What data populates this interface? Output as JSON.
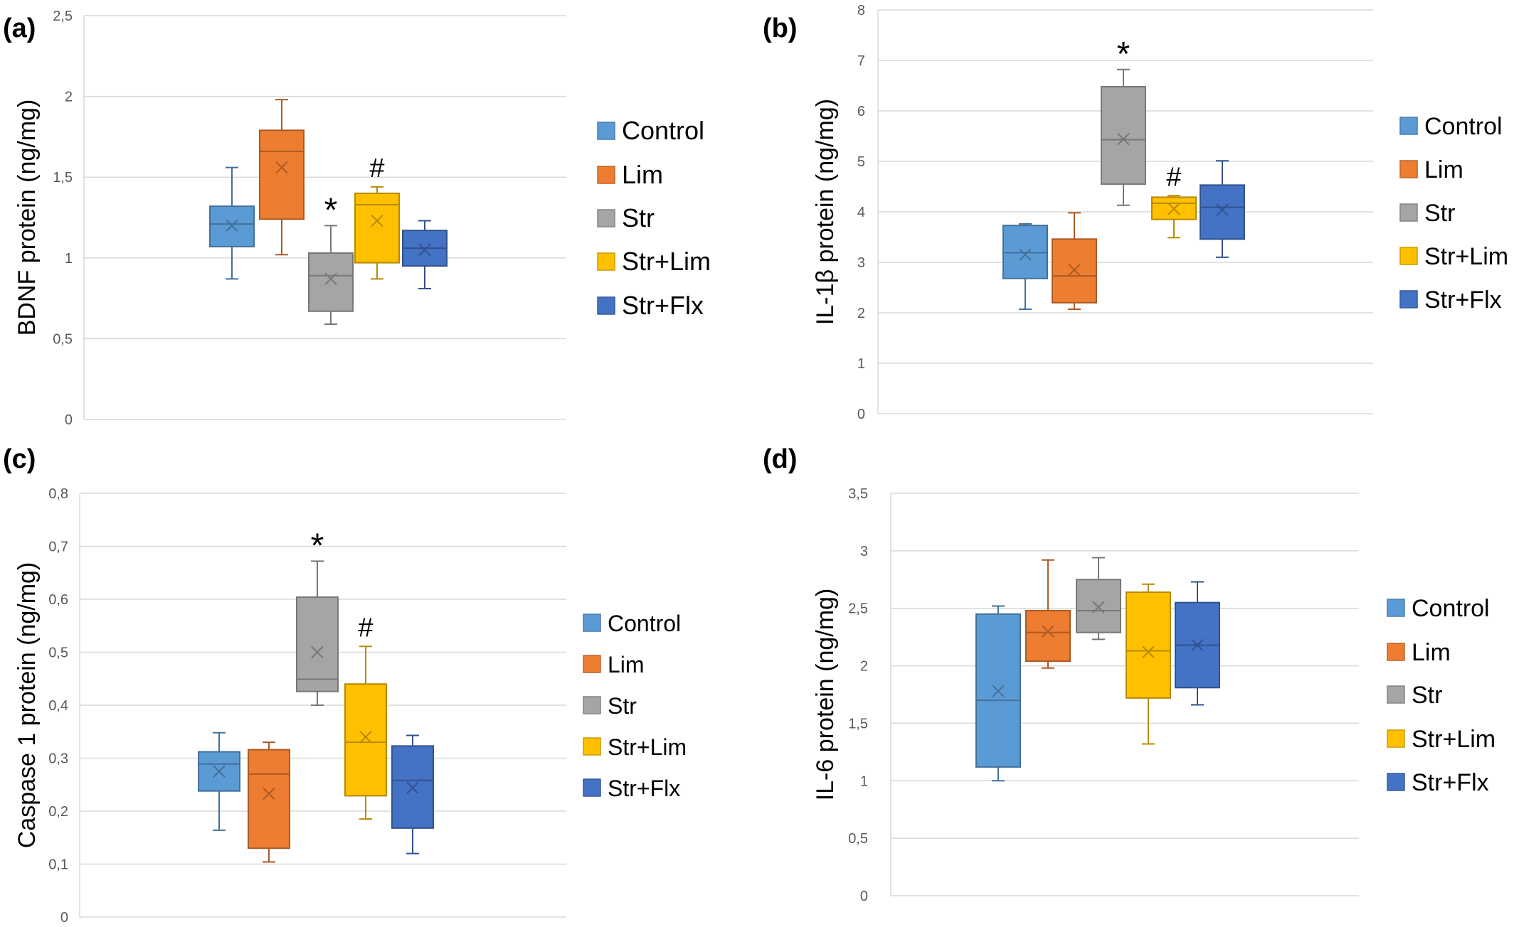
{
  "colors": {
    "Control": "#5B9BD5",
    "Lim": "#ED7D31",
    "Str": "#A5A5A5",
    "Str+Lim": "#FFC000",
    "Str+Flx": "#4472C4",
    "grid": "#D9D9D9",
    "whisker_dark": "#7F7F7F"
  },
  "chart_data": [
    {
      "type": "box",
      "panel_label": "(a)",
      "ylabel": "BDNF protein (ng/mg)",
      "ylim": [
        0,
        2.5
      ],
      "yticks": [
        "0",
        "0,5",
        "1",
        "1,5",
        "2",
        "2,5"
      ],
      "grid": true,
      "legend_position": "right",
      "series": [
        {
          "name": "Control",
          "min": 0.87,
          "q1": 1.07,
          "median": 1.21,
          "q3": 1.32,
          "max": 1.56,
          "mean": 1.2
        },
        {
          "name": "Lim",
          "min": 1.02,
          "q1": 1.24,
          "median": 1.66,
          "q3": 1.79,
          "max": 1.98,
          "mean": 1.56
        },
        {
          "name": "Str",
          "min": 0.59,
          "q1": 0.67,
          "median": 0.89,
          "q3": 1.03,
          "max": 1.2,
          "mean": 0.87,
          "marker": "*"
        },
        {
          "name": "Str+Lim",
          "min": 0.87,
          "q1": 0.97,
          "median": 1.33,
          "q3": 1.4,
          "max": 1.44,
          "mean": 1.23,
          "marker": "#"
        },
        {
          "name": "Str+Flx",
          "min": 0.81,
          "q1": 0.95,
          "median": 1.06,
          "q3": 1.17,
          "max": 1.23,
          "mean": 1.05
        }
      ]
    },
    {
      "type": "box",
      "panel_label": "(b)",
      "ylabel": "IL-1β protein (ng/mg)",
      "ylim": [
        0,
        8
      ],
      "yticks": [
        "0",
        "1",
        "2",
        "3",
        "4",
        "5",
        "6",
        "7",
        "8"
      ],
      "grid": true,
      "legend_position": "right",
      "series": [
        {
          "name": "Control",
          "min": 2.07,
          "q1": 2.68,
          "median": 3.19,
          "q3": 3.73,
          "max": 3.76,
          "mean": 3.15
        },
        {
          "name": "Lim",
          "min": 2.07,
          "q1": 2.2,
          "median": 2.73,
          "q3": 3.46,
          "max": 3.98,
          "mean": 2.85
        },
        {
          "name": "Str",
          "min": 4.13,
          "q1": 4.55,
          "median": 5.43,
          "q3": 6.48,
          "max": 6.82,
          "mean": 5.44,
          "marker": "*"
        },
        {
          "name": "Str+Lim",
          "min": 3.49,
          "q1": 3.85,
          "median": 4.17,
          "q3": 4.29,
          "max": 4.32,
          "mean": 4.06,
          "marker": "#"
        },
        {
          "name": "Str+Flx",
          "min": 3.1,
          "q1": 3.46,
          "median": 4.09,
          "q3": 4.53,
          "max": 5.01,
          "mean": 4.04
        }
      ]
    },
    {
      "type": "box",
      "panel_label": "(c)",
      "ylabel": "Caspase 1 protein (ng/mg)",
      "ylim": [
        0,
        0.8
      ],
      "yticks": [
        "0",
        "0,1",
        "0,2",
        "0,3",
        "0,4",
        "0,5",
        "0,6",
        "0,7",
        "0,8"
      ],
      "grid": true,
      "legend_position": "right",
      "series": [
        {
          "name": "Control",
          "min": 0.164,
          "q1": 0.238,
          "median": 0.289,
          "q3": 0.312,
          "max": 0.348,
          "mean": 0.275
        },
        {
          "name": "Lim",
          "min": 0.104,
          "q1": 0.13,
          "median": 0.27,
          "q3": 0.316,
          "max": 0.33,
          "mean": 0.233
        },
        {
          "name": "Str",
          "min": 0.4,
          "q1": 0.426,
          "median": 0.449,
          "q3": 0.604,
          "max": 0.672,
          "mean": 0.5,
          "marker": "*"
        },
        {
          "name": "Str+Lim",
          "min": 0.185,
          "q1": 0.229,
          "median": 0.33,
          "q3": 0.44,
          "max": 0.511,
          "mean": 0.34,
          "marker": "#"
        },
        {
          "name": "Str+Flx",
          "min": 0.12,
          "q1": 0.168,
          "median": 0.258,
          "q3": 0.323,
          "max": 0.343,
          "mean": 0.244
        }
      ]
    },
    {
      "type": "box",
      "panel_label": "(d)",
      "ylabel": "IL-6 protein (ng/mg)",
      "ylim": [
        0,
        3.5
      ],
      "yticks": [
        "0",
        "0,5",
        "1",
        "1,5",
        "2",
        "2,5",
        "3",
        "3,5"
      ],
      "grid": true,
      "legend_position": "right",
      "series": [
        {
          "name": "Control",
          "min": 1.0,
          "q1": 1.12,
          "median": 1.7,
          "q3": 2.45,
          "max": 2.52,
          "mean": 1.78
        },
        {
          "name": "Lim",
          "min": 1.98,
          "q1": 2.04,
          "median": 2.29,
          "q3": 2.48,
          "max": 2.92,
          "mean": 2.3
        },
        {
          "name": "Str",
          "min": 2.23,
          "q1": 2.29,
          "median": 2.48,
          "q3": 2.75,
          "max": 2.94,
          "mean": 2.51
        },
        {
          "name": "Str+Lim",
          "min": 1.32,
          "q1": 1.72,
          "median": 2.13,
          "q3": 2.64,
          "max": 2.71,
          "mean": 2.12
        },
        {
          "name": "Str+Flx",
          "min": 1.66,
          "q1": 1.81,
          "median": 2.18,
          "q3": 2.55,
          "max": 2.73,
          "mean": 2.18
        }
      ]
    }
  ]
}
